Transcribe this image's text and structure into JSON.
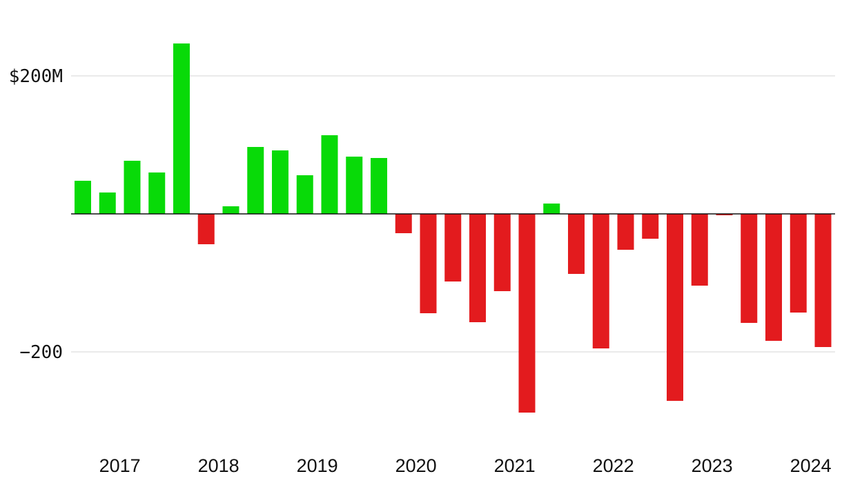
{
  "chart_data": {
    "type": "bar",
    "title": "",
    "xlabel": "",
    "ylabel": "",
    "unit": "$M",
    "ylim": [
      -345,
      250
    ],
    "y_ticks": [
      {
        "value": 200,
        "label": "$200M"
      },
      {
        "value": -200,
        "label": "−200"
      }
    ],
    "x_ticks": [
      {
        "label": "2017",
        "quarter_index": 1.5
      },
      {
        "label": "2018",
        "quarter_index": 5.5
      },
      {
        "label": "2019",
        "quarter_index": 9.5
      },
      {
        "label": "2020",
        "quarter_index": 13.5
      },
      {
        "label": "2021",
        "quarter_index": 17.5
      },
      {
        "label": "2022",
        "quarter_index": 21.5
      },
      {
        "label": "2023",
        "quarter_index": 25.5
      },
      {
        "label": "2024",
        "quarter_index": 29.5
      }
    ],
    "periods": [
      "Q1 2017",
      "Q2 2017",
      "Q3 2017",
      "Q4 2017",
      "Q1 2018",
      "Q2 2018",
      "Q3 2018",
      "Q4 2018",
      "Q1 2019",
      "Q2 2019",
      "Q3 2019",
      "Q4 2019",
      "Q1 2020",
      "Q2 2020",
      "Q3 2020",
      "Q4 2020",
      "Q1 2021",
      "Q2 2021",
      "Q3 2021",
      "Q4 2021",
      "Q1 2022",
      "Q2 2022",
      "Q3 2022",
      "Q4 2022",
      "Q1 2023",
      "Q2 2023",
      "Q3 2023",
      "Q4 2023",
      "Q1 2024",
      "Q2 2024",
      "Q3 2024"
    ],
    "values": [
      48,
      31,
      77,
      60,
      247,
      -44,
      11,
      97,
      92,
      56,
      114,
      83,
      81,
      -28,
      -144,
      -98,
      -157,
      -112,
      -288,
      15,
      -87,
      -195,
      -52,
      -36,
      -271,
      -104,
      -2,
      -158,
      -184,
      -143,
      -193
    ],
    "grid": true,
    "legend": "none",
    "colors": {
      "positive": "#08da08",
      "negative": "#e31b1e",
      "grid": "#e3e3e3",
      "baseline": "#111111"
    }
  }
}
